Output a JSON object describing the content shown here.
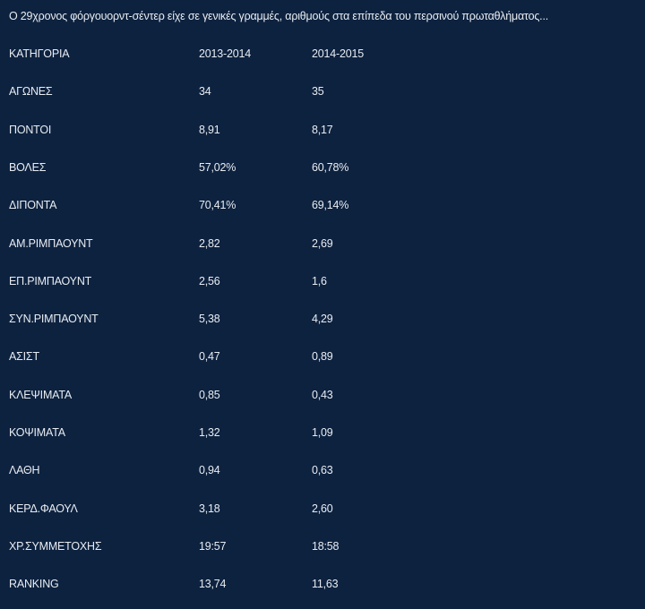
{
  "intro": "Ο 29χρονος φόργουορντ-σέντερ είχε σε γενικές γραμμές, αριθμούς στα επίπεδα του περσινού πρωταθλήματος...",
  "table": {
    "header": [
      "ΚΑΤΗΓΟΡΙΑ",
      "2013-2014",
      "2014-2015"
    ],
    "rows": [
      [
        "ΑΓΩΝΕΣ",
        "34",
        "35"
      ],
      [
        "ΠΟΝΤΟΙ",
        "8,91",
        "8,17"
      ],
      [
        "ΒΟΛΕΣ",
        "57,02%",
        "60,78%"
      ],
      [
        "ΔΙΠΟΝΤΑ",
        "70,41%",
        "69,14%"
      ],
      [
        "ΑΜ.ΡΙΜΠΑΟΥΝΤ",
        "2,82",
        "2,69"
      ],
      [
        "ΕΠ.ΡΙΜΠΑΟΥΝΤ",
        "2,56",
        "1,6"
      ],
      [
        "ΣΥΝ.ΡΙΜΠΑΟΥΝΤ",
        "5,38",
        "4,29"
      ],
      [
        "ΑΣΙΣΤ",
        "0,47",
        "0,89"
      ],
      [
        "ΚΛΕΨΙΜΑΤΑ",
        "0,85",
        "0,43"
      ],
      [
        "ΚΟΨΙΜΑΤΑ",
        "1,32",
        "1,09"
      ],
      [
        "ΛΑΘΗ",
        "0,94",
        "0,63"
      ],
      [
        "ΚΕΡΔ.ΦΑΟΥΛ",
        "3,18",
        "2,60"
      ],
      [
        "ΧΡ.ΣΥΜΜΕΤΟΧΗΣ",
        "19:57",
        "18:58"
      ],
      [
        "RANKING",
        "13,74",
        "11,63"
      ]
    ]
  }
}
